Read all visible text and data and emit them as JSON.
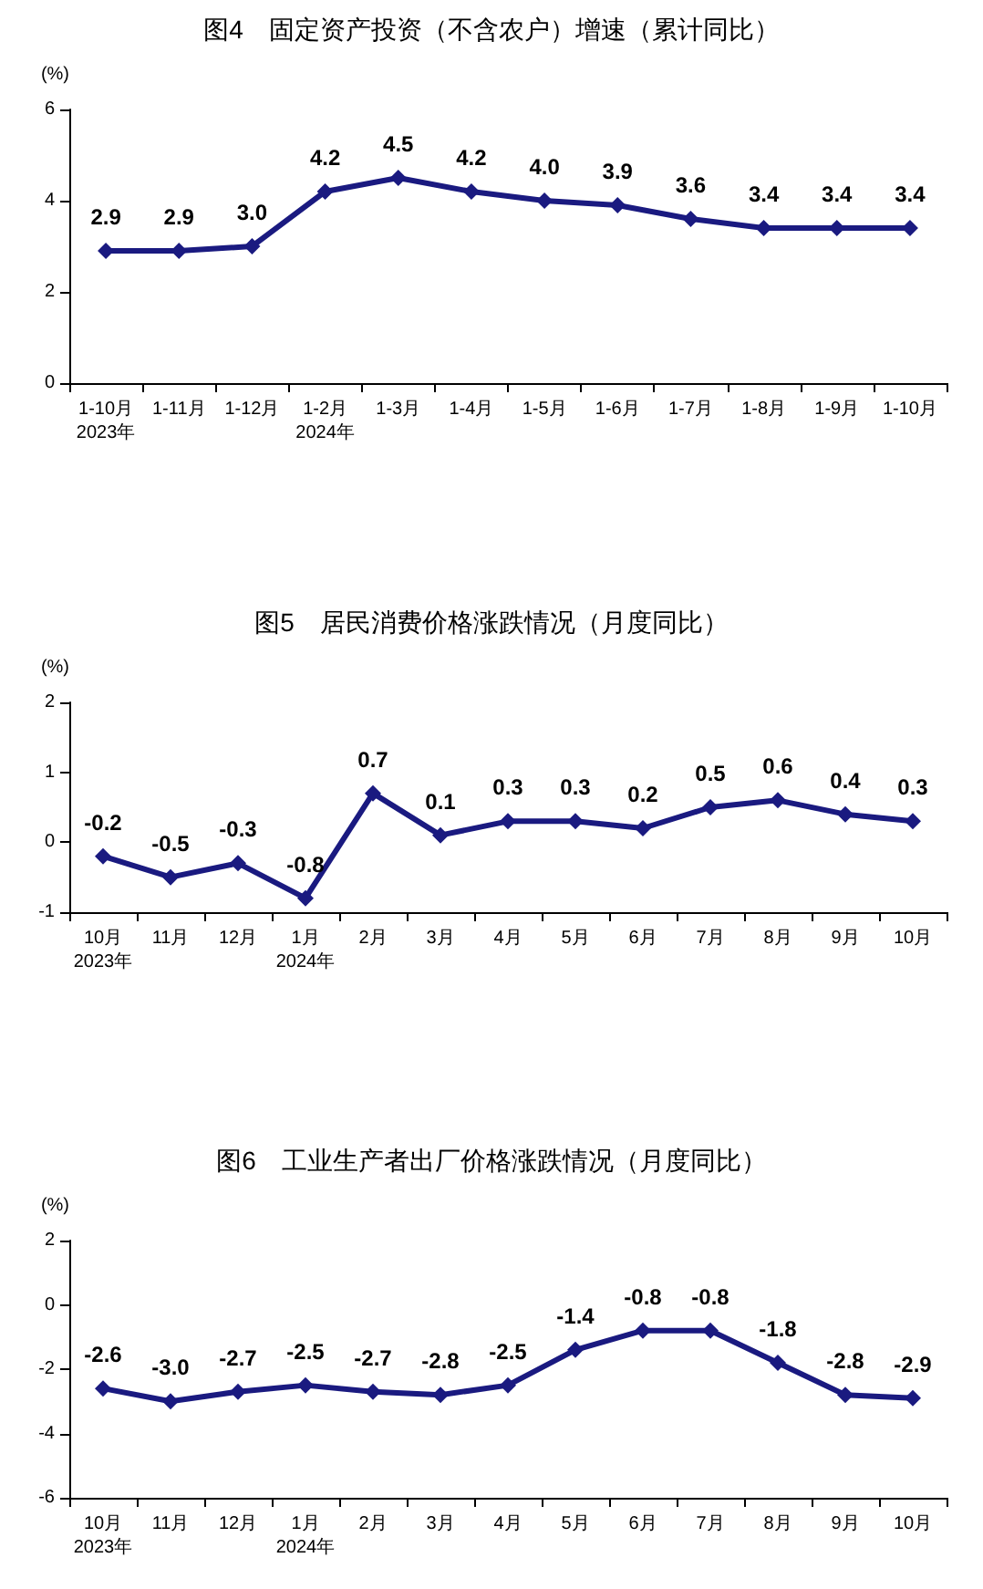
{
  "chart_data": [
    {
      "type": "line",
      "title": "图4　固定资产投资（不含农户）增速（累计同比）",
      "ylabel": "(%)",
      "categories": [
        "1-10月\n2023年",
        "1-11月",
        "1-12月",
        "1-2月\n2024年",
        "1-3月",
        "1-4月",
        "1-5月",
        "1-6月",
        "1-7月",
        "1-8月",
        "1-9月",
        "1-10月"
      ],
      "series": [
        {
          "color": "#1a1a80",
          "values": [
            2.9,
            2.9,
            3.0,
            4.2,
            4.5,
            4.2,
            4.0,
            3.9,
            3.6,
            3.4,
            3.4,
            3.4
          ],
          "value_labels": [
            "2.9",
            "2.9",
            "3.0",
            "4.2",
            "4.5",
            "4.2",
            "4.0",
            "3.9",
            "3.6",
            "3.4",
            "3.4",
            "3.4"
          ]
        }
      ],
      "ylim": [
        0,
        6
      ],
      "yticks": [
        0,
        2,
        4,
        6
      ],
      "marker": "diamond",
      "grid": false
    },
    {
      "type": "line",
      "title": "图5　居民消费价格涨跌情况（月度同比）",
      "ylabel": "(%)",
      "categories": [
        "10月\n2023年",
        "11月",
        "12月",
        "1月\n2024年",
        "2月",
        "3月",
        "4月",
        "5月",
        "6月",
        "7月",
        "8月",
        "9月",
        "10月"
      ],
      "series": [
        {
          "color": "#1a1a80",
          "values": [
            -0.2,
            -0.5,
            -0.3,
            -0.8,
            0.7,
            0.1,
            0.3,
            0.3,
            0.2,
            0.5,
            0.6,
            0.4,
            0.3
          ],
          "value_labels": [
            "-0.2",
            "-0.5",
            "-0.3",
            "-0.8",
            "0.7",
            "0.1",
            "0.3",
            "0.3",
            "0.2",
            "0.5",
            "0.6",
            "0.4",
            "0.3"
          ]
        }
      ],
      "ylim": [
        -1,
        2
      ],
      "yticks": [
        -1,
        0,
        1,
        2
      ],
      "marker": "diamond",
      "grid": false
    },
    {
      "type": "line",
      "title": "图6　工业生产者出厂价格涨跌情况（月度同比）",
      "ylabel": "(%)",
      "categories": [
        "10月\n2023年",
        "11月",
        "12月",
        "1月\n2024年",
        "2月",
        "3月",
        "4月",
        "5月",
        "6月",
        "7月",
        "8月",
        "9月",
        "10月"
      ],
      "series": [
        {
          "color": "#1a1a80",
          "values": [
            -2.6,
            -3.0,
            -2.7,
            -2.5,
            -2.7,
            -2.8,
            -2.5,
            -1.4,
            -0.8,
            -0.8,
            -1.8,
            -2.8,
            -2.9
          ],
          "value_labels": [
            "-2.6",
            "-3.0",
            "-2.7",
            "-2.5",
            "-2.7",
            "-2.8",
            "-2.5",
            "-1.4",
            "-0.8",
            "-0.8",
            "-1.8",
            "-2.8",
            "-2.9"
          ]
        }
      ],
      "ylim": [
        -6,
        2
      ],
      "yticks": [
        -6,
        -4,
        -2,
        0,
        2
      ],
      "marker": "diamond",
      "grid": false
    }
  ]
}
